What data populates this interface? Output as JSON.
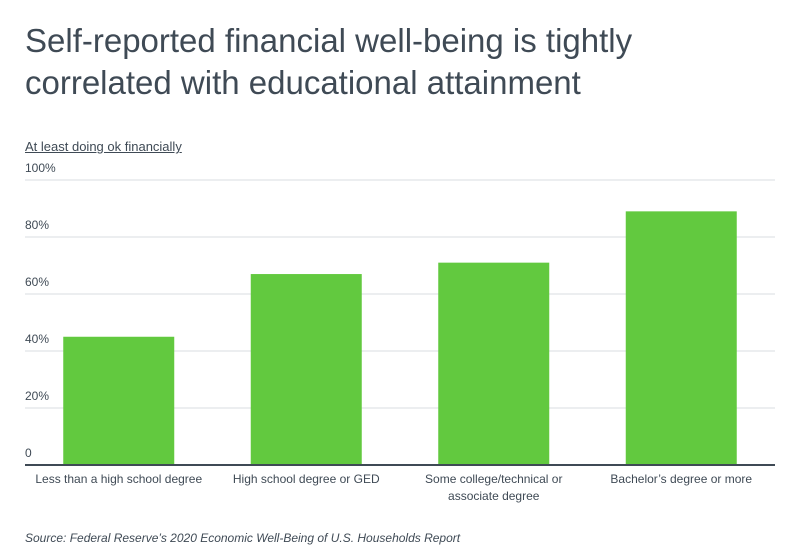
{
  "title": "Self-reported financial well-being is tightly correlated with educational attainment",
  "source": "Source:  Federal Reserve’s 2020 Economic Well-Being of U.S. Households Report",
  "colors": {
    "bar": "#62c93f",
    "grid": "#d9dde1",
    "axis": "#3f4a55",
    "text": "#3f4a55"
  },
  "chart_data": {
    "type": "bar",
    "ylabel": "At least doing ok financially",
    "categories": [
      [
        "Less than a high school degree"
      ],
      [
        "High school degree or GED"
      ],
      [
        "Some college/technical or",
        "associate degree"
      ],
      [
        "Bachelor’s degree or more"
      ]
    ],
    "values": [
      45,
      67,
      71,
      89
    ],
    "ylim": [
      0,
      100
    ],
    "yticks": [
      0,
      20,
      40,
      60,
      80,
      100
    ],
    "ytick_labels": [
      "0",
      "20%",
      "40%",
      "60%",
      "80%",
      "100%"
    ],
    "grid": true,
    "legend": "none"
  }
}
